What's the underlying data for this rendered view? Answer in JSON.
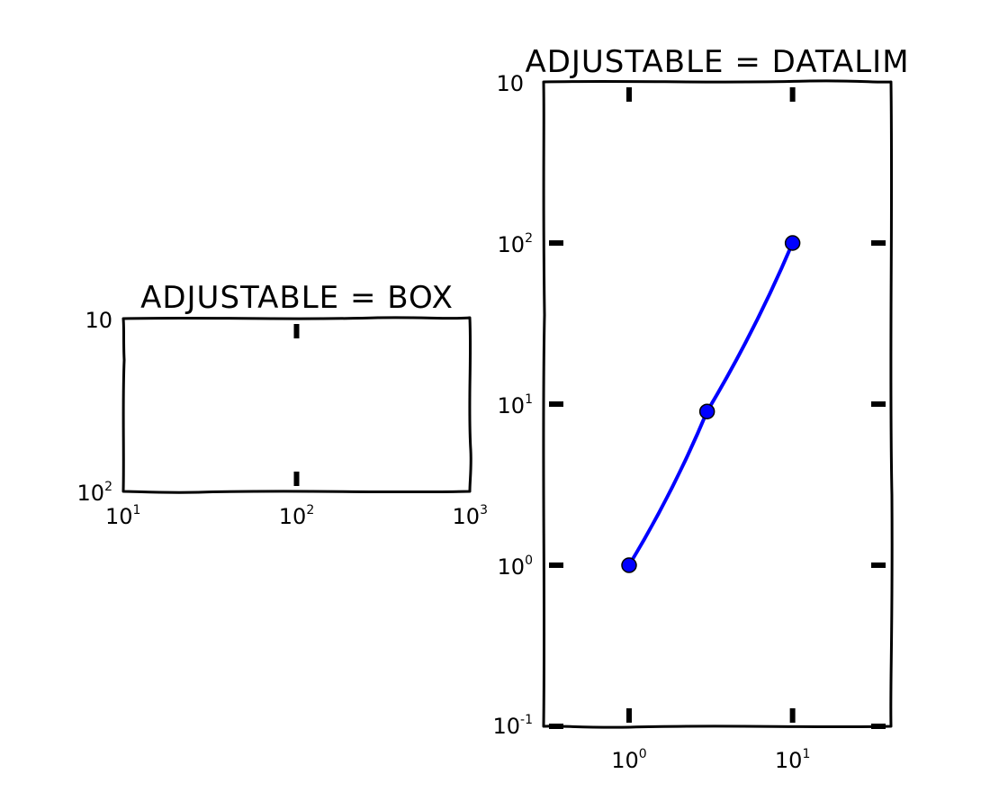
{
  "chart_data": [
    {
      "type": "line",
      "title": "ADJUSTABLE = BOX",
      "x_scale": "log",
      "y_scale": "log",
      "xlim": [
        10,
        1000
      ],
      "ylim": [
        100,
        10
      ],
      "x_ticks": [
        10,
        100,
        1000
      ],
      "y_ticks": [
        10,
        100
      ],
      "x_tick_labels": [
        {
          "base": "10",
          "exp": "1"
        },
        {
          "base": "10",
          "exp": "2"
        },
        {
          "base": "10",
          "exp": "3"
        }
      ],
      "y_tick_labels": [
        {
          "base": "10",
          "exp": ""
        },
        {
          "base": "10",
          "exp": "2"
        }
      ],
      "series": [
        {
          "x": [],
          "y": [],
          "color": "#0000ff"
        }
      ],
      "grid": false
    },
    {
      "type": "line",
      "title": "ADJUSTABLE = DATALIM",
      "x_scale": "log",
      "y_scale": "log",
      "xlim": [
        0.3,
        40
      ],
      "ylim": [
        0.1,
        1000
      ],
      "x_ticks": [
        1,
        10
      ],
      "y_ticks": [
        0.1,
        1,
        10,
        100
      ],
      "x_tick_labels": [
        {
          "base": "10",
          "exp": "0"
        },
        {
          "base": "10",
          "exp": "1"
        }
      ],
      "y_tick_labels": [
        {
          "base": "10",
          "exp": "-1"
        },
        {
          "base": "10",
          "exp": "0"
        },
        {
          "base": "10",
          "exp": "1"
        },
        {
          "base": "10",
          "exp": "2"
        }
      ],
      "top_tick_labels": [
        {
          "base": "10",
          "exp": ""
        }
      ],
      "series": [
        {
          "x": [
            1,
            3,
            10
          ],
          "y": [
            1,
            9,
            100
          ],
          "color": "#0000ff",
          "marker": "o"
        }
      ],
      "grid": false
    }
  ]
}
